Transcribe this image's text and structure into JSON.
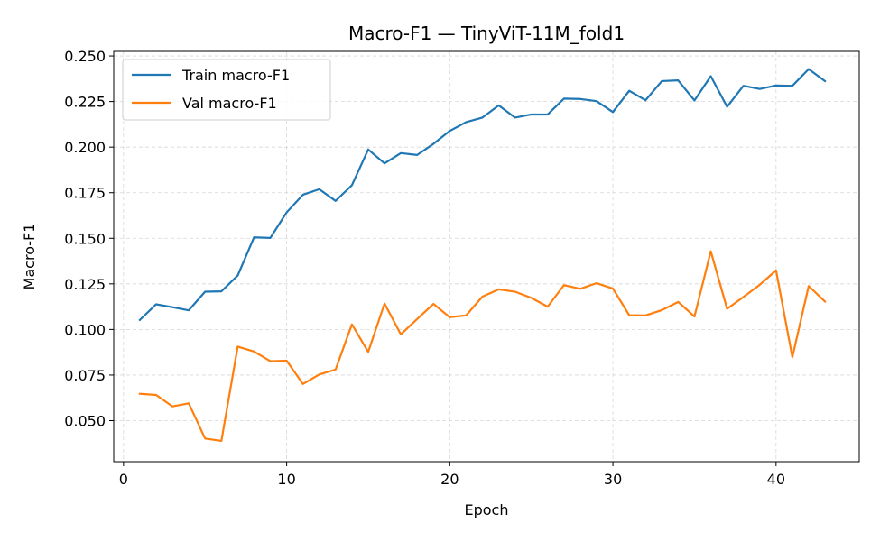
{
  "chart_data": {
    "type": "line",
    "title": "Macro-F1 — TinyViT-11M_fold1",
    "xlabel": "Epoch",
    "ylabel": "Macro-F1",
    "xlim": [
      -0.6,
      45.1
    ],
    "ylim": [
      0.0275,
      0.2525
    ],
    "xticks": [
      0,
      10,
      20,
      30,
      40
    ],
    "yticks": [
      0.05,
      0.075,
      0.1,
      0.125,
      0.15,
      0.175,
      0.2,
      0.225,
      0.25
    ],
    "ytick_labels": [
      "0.050",
      "0.075",
      "0.100",
      "0.125",
      "0.150",
      "0.175",
      "0.200",
      "0.225",
      "0.250"
    ],
    "grid": true,
    "legend_position": "top-left",
    "x": [
      1,
      2,
      3,
      4,
      5,
      6,
      7,
      8,
      9,
      10,
      11,
      12,
      13,
      14,
      15,
      16,
      17,
      18,
      19,
      20,
      21,
      22,
      23,
      24,
      25,
      26,
      27,
      28,
      29,
      30,
      31,
      32,
      33,
      34,
      35,
      36,
      37,
      38,
      39,
      40,
      41,
      42,
      43
    ],
    "series": [
      {
        "name": "Train macro-F1",
        "color": "#1f77b4",
        "values": [
          0.1052,
          0.1138,
          0.1122,
          0.1105,
          0.1207,
          0.1209,
          0.1296,
          0.1505,
          0.1502,
          0.1642,
          0.1739,
          0.1769,
          0.1705,
          0.1791,
          0.1987,
          0.1911,
          0.1967,
          0.1957,
          0.2018,
          0.2089,
          0.2137,
          0.2162,
          0.2229,
          0.2162,
          0.2179,
          0.2179,
          0.2266,
          0.2264,
          0.2252,
          0.2192,
          0.2309,
          0.2257,
          0.2362,
          0.2366,
          0.2256,
          0.2389,
          0.2221,
          0.2336,
          0.2319,
          0.2338,
          0.2336,
          0.2428,
          0.2362
        ]
      },
      {
        "name": "Val macro-F1",
        "color": "#ff7f0e",
        "values": [
          0.0647,
          0.0641,
          0.0578,
          0.0595,
          0.0402,
          0.0389,
          0.0906,
          0.0879,
          0.0826,
          0.0829,
          0.0701,
          0.0753,
          0.078,
          0.1028,
          0.0877,
          0.1142,
          0.0973,
          0.1057,
          0.114,
          0.1067,
          0.1077,
          0.118,
          0.122,
          0.1207,
          0.1173,
          0.1125,
          0.1243,
          0.1223,
          0.1254,
          0.1224,
          0.1078,
          0.1077,
          0.1106,
          0.1151,
          0.1071,
          0.1429,
          0.1113,
          0.1178,
          0.1245,
          0.1324,
          0.0848,
          0.1238,
          0.1153
        ]
      }
    ]
  }
}
